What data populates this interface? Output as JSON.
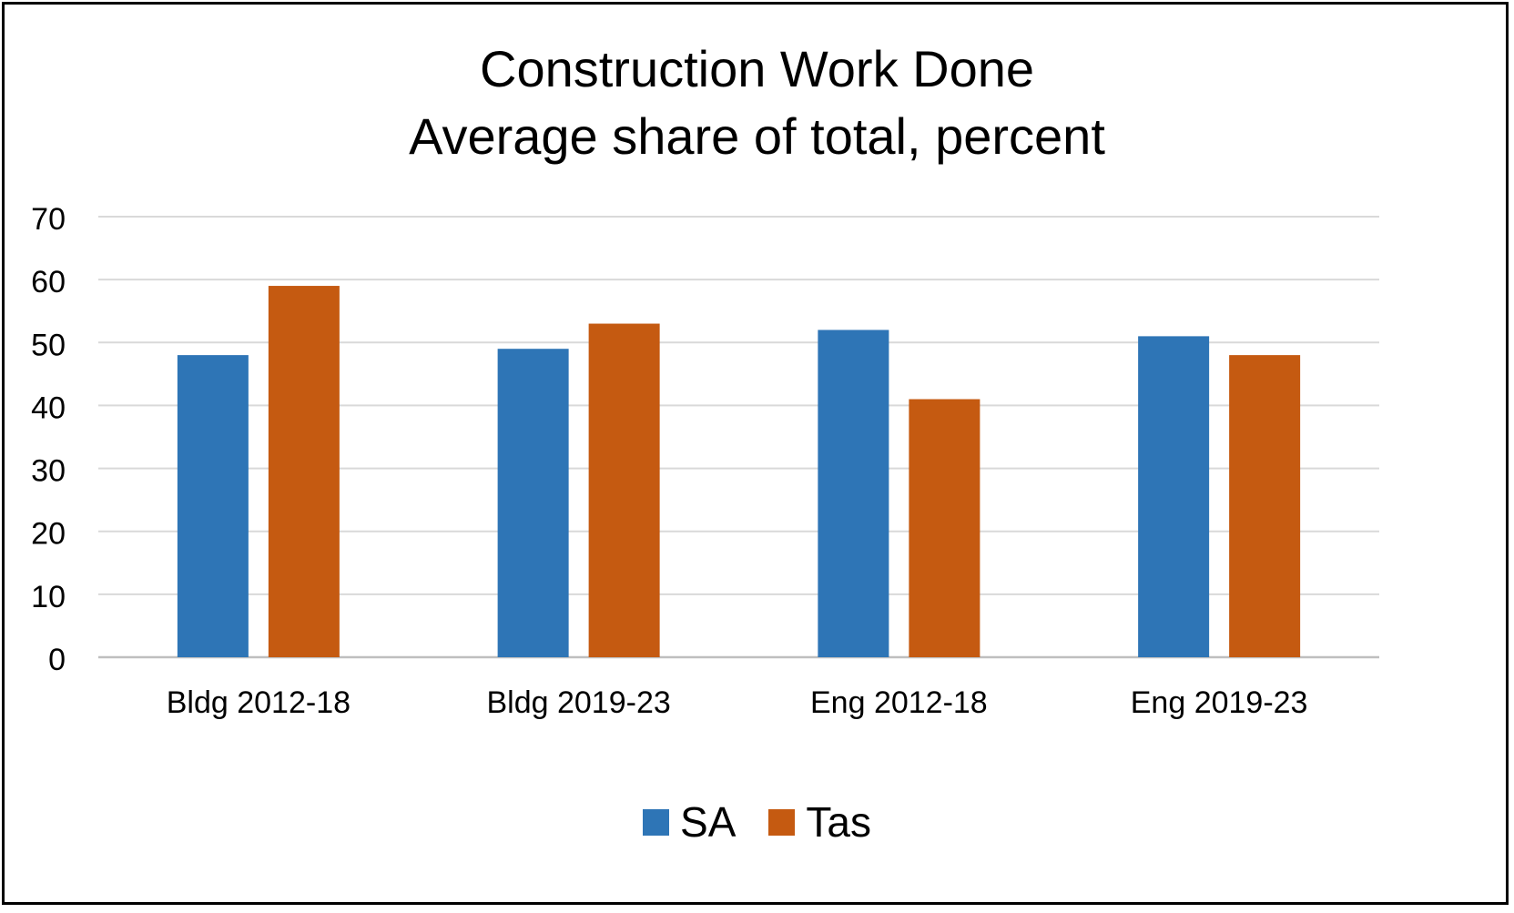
{
  "chart_data": {
    "type": "bar",
    "title": "Construction Work Done",
    "subtitle": "Average share of total, percent",
    "categories": [
      "Bldg 2012-18",
      "Bldg 2019-23",
      "Eng 2012-18",
      "Eng 2019-23"
    ],
    "series": [
      {
        "name": "SA",
        "values": [
          48,
          49,
          52,
          51
        ],
        "color": "#2E75B6"
      },
      {
        "name": "Tas",
        "values": [
          59,
          53,
          41,
          48
        ],
        "color": "#C55A11"
      }
    ],
    "ylim": [
      0,
      70
    ],
    "yticks": [
      0,
      10,
      20,
      30,
      40,
      50,
      60,
      70
    ],
    "xlabel": "",
    "ylabel": "",
    "grid": true,
    "legend": "bottom"
  }
}
